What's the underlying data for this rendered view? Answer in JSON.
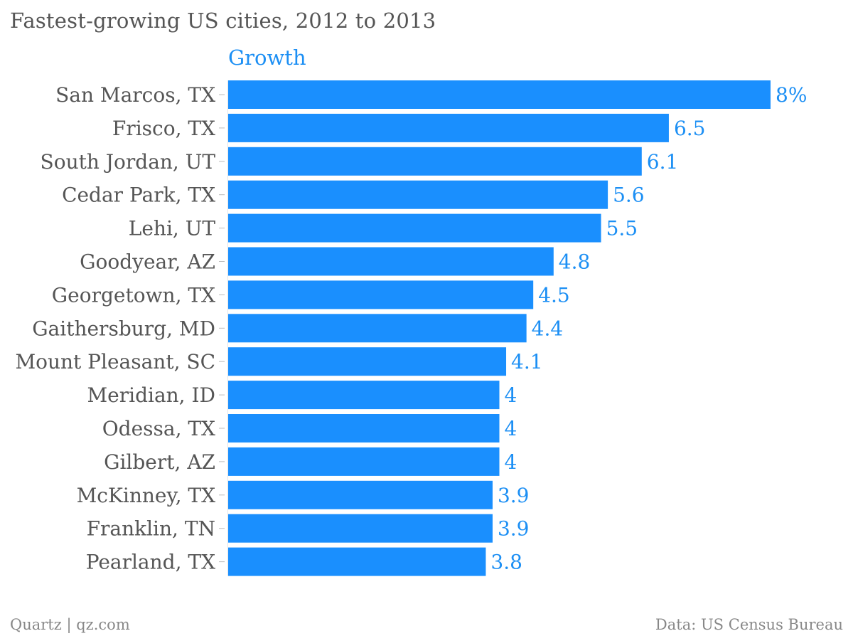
{
  "chart_data": {
    "type": "bar",
    "orientation": "horizontal",
    "title": "Fastest-growing US cities, 2012 to 2013",
    "series": [
      {
        "name": "Growth",
        "values": [
          8,
          6.5,
          6.1,
          5.6,
          5.5,
          4.8,
          4.5,
          4.4,
          4.1,
          4,
          4,
          4,
          3.9,
          3.9,
          3.8
        ],
        "labels": [
          "8%",
          "6.5",
          "6.1",
          "5.6",
          "5.5",
          "4.8",
          "4.5",
          "4.4",
          "4.1",
          "4",
          "4",
          "4",
          "3.9",
          "3.9",
          "3.8"
        ]
      }
    ],
    "categories": [
      "San Marcos, TX",
      "Frisco, TX",
      "South Jordan, UT",
      "Cedar Park, TX",
      "Lehi, UT",
      "Goodyear, AZ",
      "Georgetown, TX",
      "Gaithersburg, MD",
      "Mount Pleasant, SC",
      "Meridian, ID",
      "Odessa, TX",
      "Gilbert, AZ",
      "McKinney, TX",
      "Franklin, TN",
      "Pearland, TX"
    ],
    "xlim": [
      0,
      8
    ],
    "grid": false,
    "bar_color": "#1a8ffe",
    "label_color": "#1c8ff4",
    "category_label_color": "#555555",
    "source_left": "Quartz | qz.com",
    "source_right": "Data: US Census Bureau"
  }
}
